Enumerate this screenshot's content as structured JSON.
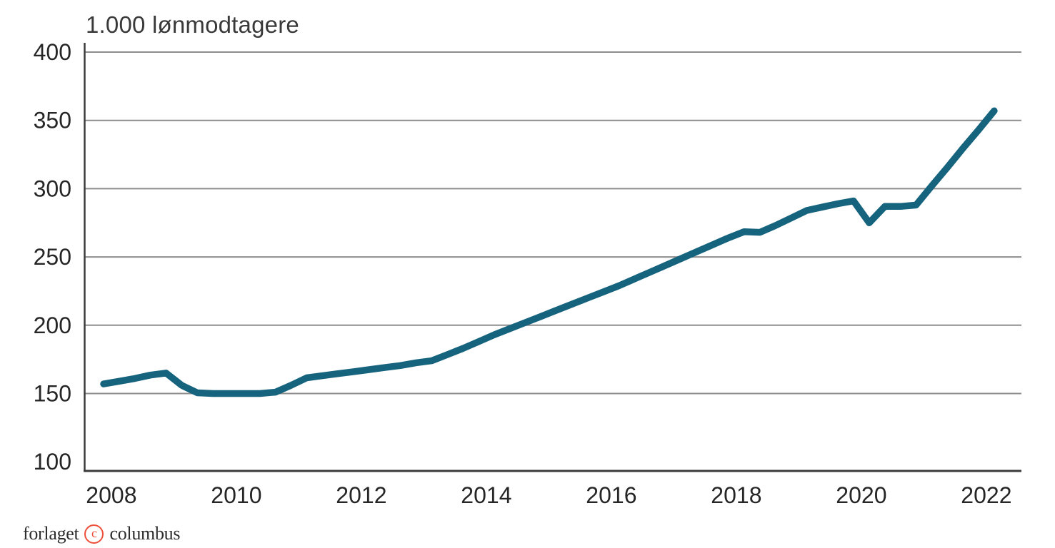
{
  "page": {
    "background": "#ffffff"
  },
  "chart_data": {
    "type": "line",
    "title": "1.000 lønmodtagere",
    "xlabel": "",
    "ylabel": "1.000 lønmodtagere",
    "legend": "none",
    "grid": "horizontal gridlines only",
    "ylim": [
      100,
      400
    ],
    "xlim_years": [
      2007.75,
      2022.55
    ],
    "y_tick_labels": [
      "100",
      "150",
      "200",
      "250",
      "300",
      "350",
      "400"
    ],
    "y_gridlines": [
      150,
      200,
      250,
      300,
      350,
      400
    ],
    "x_tick_labels": [
      "2008",
      "2010",
      "2012",
      "2014",
      "2016",
      "2018",
      "2020",
      "2022"
    ],
    "frequency": "quarterly",
    "line_color": "#16637e",
    "series": [
      {
        "name": "Lønmodtagere (1.000)",
        "x": [
          2007.875,
          2008.125,
          2008.375,
          2008.625,
          2008.875,
          2009.125,
          2009.375,
          2009.625,
          2009.875,
          2010.125,
          2010.375,
          2010.625,
          2010.875,
          2011.125,
          2011.375,
          2011.625,
          2011.875,
          2012.125,
          2012.375,
          2012.625,
          2012.875,
          2013.125,
          2013.375,
          2013.625,
          2013.875,
          2014.125,
          2014.375,
          2014.625,
          2014.875,
          2015.125,
          2015.375,
          2015.625,
          2015.875,
          2016.125,
          2016.375,
          2016.625,
          2016.875,
          2017.125,
          2017.375,
          2017.625,
          2017.875,
          2018.125,
          2018.375,
          2018.625,
          2018.875,
          2019.125,
          2019.375,
          2019.625,
          2019.875,
          2020.125,
          2020.375,
          2020.625,
          2020.875,
          2021.125,
          2021.375,
          2021.625,
          2021.875,
          2022.125
        ],
        "values": [
          157,
          159,
          161,
          163.5,
          165,
          156,
          150.5,
          150,
          150,
          150,
          150,
          151,
          156,
          161.5,
          163,
          164.5,
          166,
          167.5,
          169,
          170.5,
          172.5,
          174,
          178.5,
          183,
          188,
          193,
          197.5,
          202,
          206.5,
          211,
          215.5,
          220,
          224.5,
          229,
          234,
          239,
          244,
          249,
          254,
          259,
          264,
          268.5,
          268,
          273,
          278.5,
          284,
          286.5,
          289,
          291,
          275,
          287,
          287,
          288,
          302,
          315.5,
          329.5,
          343,
          357
        ]
      }
    ]
  },
  "footer_logo": {
    "word1": "forlaget",
    "c_glyph": "c",
    "word2": "columbus",
    "ring_color": "#ee4f3b",
    "text_color": "#2d2d2d"
  }
}
